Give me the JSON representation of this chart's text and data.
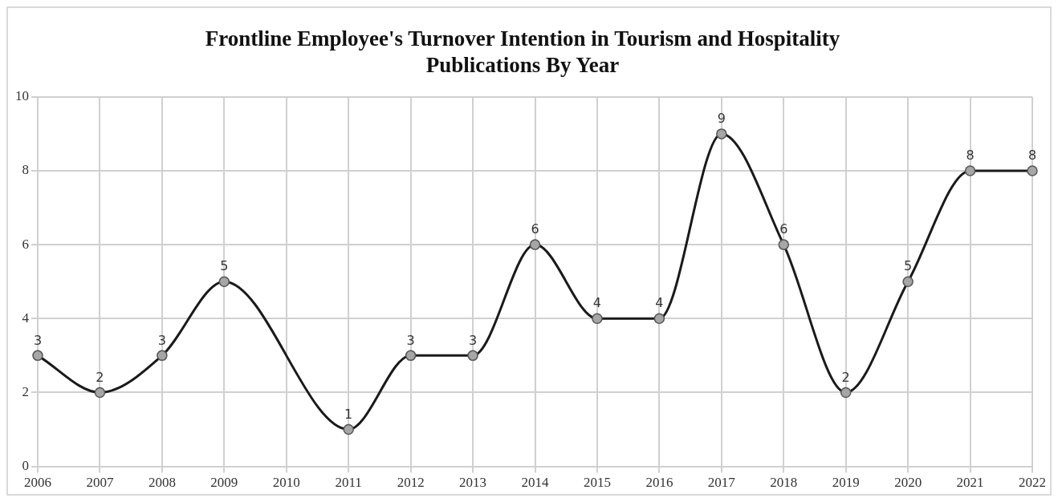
{
  "chart_data": {
    "type": "line",
    "title": "Frontline Employee's Turnover Intention in Tourism and Hospitality\nPublications By Year",
    "categories": [
      "2006",
      "2007",
      "2008",
      "2009",
      "2010",
      "2011",
      "2012",
      "2013",
      "2014",
      "2015",
      "2016",
      "2017",
      "2018",
      "2019",
      "2020",
      "2021",
      "2022"
    ],
    "series": [
      {
        "color": "#1a1a1a",
        "values": [
          3,
          2,
          3,
          5,
          null,
          1,
          3,
          3,
          6,
          4,
          4,
          9,
          6,
          2,
          5,
          8,
          8
        ]
      }
    ],
    "ylim": [
      0,
      10
    ],
    "yticks": [
      0,
      2,
      4,
      6,
      8,
      10
    ],
    "grid": true,
    "legend": false,
    "marker": "circle",
    "line_style": "solid",
    "data_labels": true
  }
}
